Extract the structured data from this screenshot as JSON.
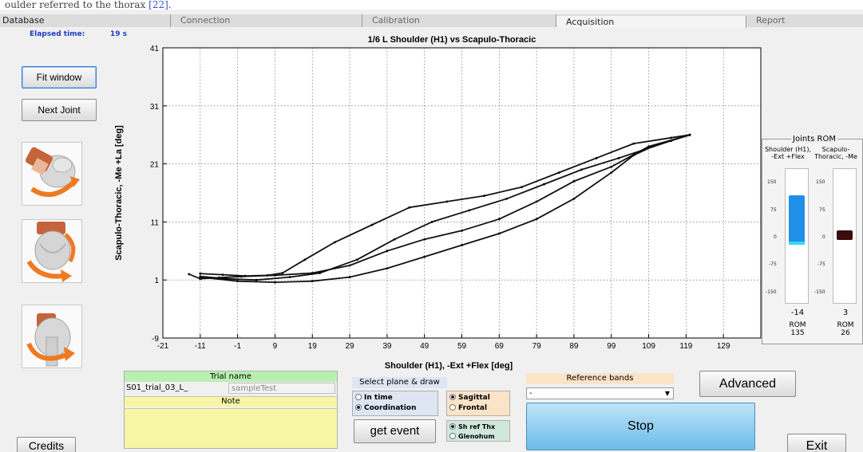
{
  "caption": {
    "prefix": "oulder referred to the thorax ",
    "ref": "[22]",
    "suffix": "."
  },
  "tabs": [
    "Database",
    "Connection",
    "Calibration",
    "Acquisition",
    "Report"
  ],
  "elapsed": {
    "label": "Elapsed time:",
    "value": "19 s"
  },
  "left_buttons": {
    "fit_window": "Fit window",
    "next_joint": "Next Joint",
    "credits": "Credits"
  },
  "chart_data": {
    "type": "line",
    "title": "1/6 L  Shoulder (H1) vs Scapulo-Thoracic",
    "xlabel": "Shoulder (H1),  -Ext +Flex  [deg]",
    "ylabel": "Scapulo-Thoracic,  -Me +La  [deg]",
    "xlim": [
      -21,
      139
    ],
    "ylim": [
      -9,
      41
    ],
    "xticks": [
      -21,
      -11,
      -1,
      9,
      19,
      29,
      39,
      49,
      59,
      69,
      79,
      89,
      99,
      109,
      119,
      129
    ],
    "yticks": [
      -9,
      1,
      11,
      21,
      31,
      41
    ],
    "grid": true,
    "series": [
      {
        "x": [
          -14,
          -11,
          -6,
          0,
          9,
          19,
          29,
          39,
          49,
          59,
          69,
          79,
          89,
          99,
          109,
          120
        ],
        "y": [
          2,
          1.2,
          1.4,
          1.6,
          1.8,
          2.2,
          3.5,
          6,
          8,
          9.5,
          11.5,
          14.5,
          18,
          20.5,
          24,
          26
        ]
      },
      {
        "x": [
          -11,
          -5,
          1,
          7,
          11,
          17,
          25,
          35,
          45,
          55,
          65,
          75,
          85,
          95,
          105,
          115,
          120
        ],
        "y": [
          2.1,
          1.9,
          1.7,
          1.8,
          2.2,
          4.5,
          7.5,
          10.5,
          13.5,
          14.5,
          15.5,
          17,
          19.5,
          22,
          24.5,
          25.5,
          26
        ]
      },
      {
        "x": [
          -11,
          -4,
          4,
          13,
          21,
          31,
          41,
          51,
          61,
          71,
          81,
          91,
          101,
          108,
          115,
          120
        ],
        "y": [
          1.6,
          1.2,
          1.0,
          1.5,
          2.2,
          4.5,
          8,
          11,
          13,
          15,
          17.5,
          20,
          22,
          23.5,
          25,
          26
        ]
      },
      {
        "x": [
          -11,
          -1,
          9,
          19,
          29,
          39,
          49,
          59,
          69,
          79,
          89,
          99,
          105,
          110,
          115,
          120
        ],
        "y": [
          1.5,
          0.8,
          0.6,
          0.8,
          1.5,
          3,
          5,
          7,
          9,
          11.5,
          15,
          19.5,
          22.5,
          24,
          25,
          26
        ]
      }
    ]
  },
  "rom": {
    "title": "Joints ROM",
    "joints": [
      {
        "name": "Shoulder (H1), -Ext +Flex",
        "ticks": [
          "150",
          "75",
          "0",
          "-75",
          "-150"
        ],
        "current": "-14",
        "rom_label": "ROM",
        "rom_value": "135",
        "bar_min": -14,
        "bar_max": 121,
        "color": "#1f8fe8"
      },
      {
        "name": "Scapulo-Thoracic, -Me +La",
        "ticks": [
          "150",
          "75",
          "0",
          "-75",
          "-150"
        ],
        "current": "3",
        "rom_label": "ROM",
        "rom_value": "26",
        "bar_min": 0,
        "bar_max": 26,
        "color": "#3a0c0c"
      }
    ]
  },
  "trial": {
    "label": "Trial name",
    "name_value": "S01_trial_03_L_",
    "name_field": "sampleTest",
    "note_label": "Note",
    "note_value": ""
  },
  "plane": {
    "title": "Select plane & draw",
    "mode_options": [
      "In time",
      "Coordination"
    ],
    "mode_selected": "Coordination",
    "plane_options": [
      "Sagittal",
      "Frontal"
    ],
    "plane_selected": "Sagittal",
    "ref_options": [
      "Sh ref Thx",
      "Glenohum"
    ],
    "ref_selected": "Sh ref Thx",
    "get_event": "get event"
  },
  "reference_bands": {
    "label": "Reference bands",
    "selected": "-"
  },
  "buttons": {
    "advanced": "Advanced",
    "stop": "Stop",
    "exit": "Exit"
  },
  "colors": {
    "stop_bg": "#7cc4ef",
    "trial_header": "#b8f0b0",
    "note_bg": "#f6f6a6",
    "ref_header": "#fbe3c8"
  }
}
